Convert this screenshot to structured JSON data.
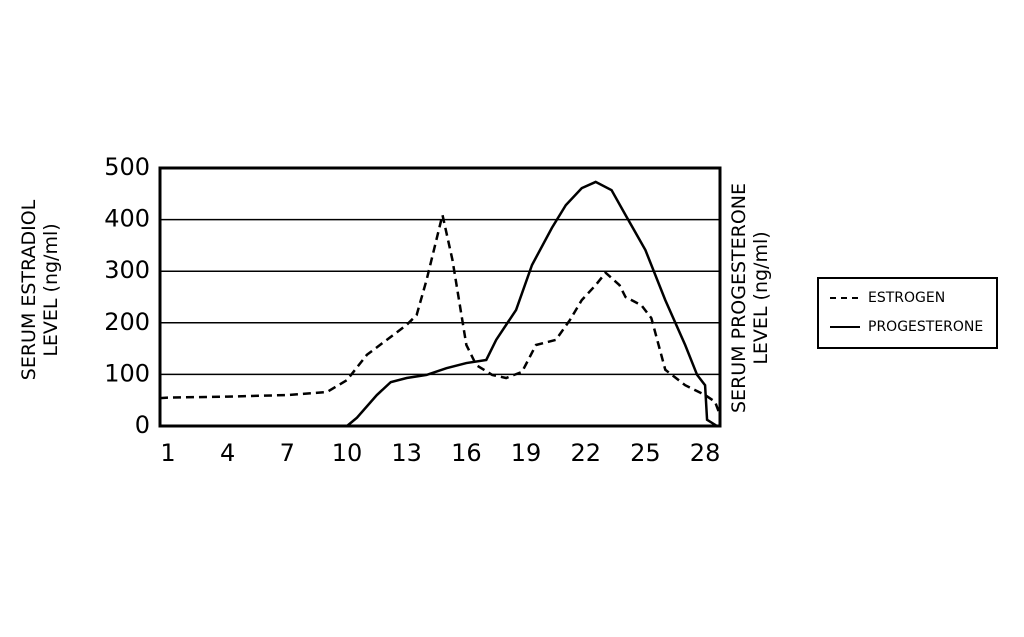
{
  "chart_data": {
    "type": "line",
    "ylabel": "SERUM ESTRADIOL LEVEL (ng/ml)",
    "y2label": "SERUM PROGESTERONE LEVEL (ng/ml)",
    "xlim": [
      0.6,
      28.75
    ],
    "xticks": [
      1,
      4,
      7,
      10,
      13,
      16,
      19,
      22,
      25,
      28
    ],
    "ylim": [
      0,
      500
    ],
    "yticks": [
      0,
      100,
      200,
      300,
      400,
      500
    ],
    "grid": true,
    "legend": "right",
    "series": [
      {
        "name": "ESTROGEN",
        "color": "#000000",
        "dashed": true,
        "x": [
          0.6,
          1,
          4,
          7,
          9,
          10,
          11,
          12,
          13,
          13.5,
          14,
          14.8,
          15.3,
          16,
          16.5,
          17.3,
          18,
          18.8,
          19.5,
          20.5,
          21.2,
          21.8,
          22.5,
          23,
          23.7,
          24,
          24.8,
          25.3,
          26,
          27,
          28,
          28.5,
          28.75
        ],
        "values": [
          54,
          55,
          57,
          60,
          66,
          89,
          138,
          167,
          196,
          215,
          283,
          409,
          322,
          157,
          118,
          99,
          93,
          105,
          157,
          167,
          205,
          244,
          273,
          297,
          273,
          250,
          234,
          209,
          109,
          79,
          60,
          47,
          21
        ]
      },
      {
        "name": "PROGESTERONE",
        "color": "#000000",
        "dashed": false,
        "x": [
          10,
          10.5,
          11.5,
          12.2,
          13,
          14,
          15,
          16,
          17,
          17.5,
          18.5,
          19.3,
          20.3,
          21,
          21.8,
          22.5,
          23.3,
          24,
          25,
          26,
          27,
          27.6,
          28,
          28.1,
          28.6
        ],
        "values": [
          0,
          16,
          60,
          85,
          93,
          99,
          112,
          122,
          128,
          167,
          225,
          312,
          384,
          428,
          461,
          473,
          457,
          409,
          341,
          244,
          157,
          99,
          79,
          12,
          0
        ]
      }
    ]
  }
}
